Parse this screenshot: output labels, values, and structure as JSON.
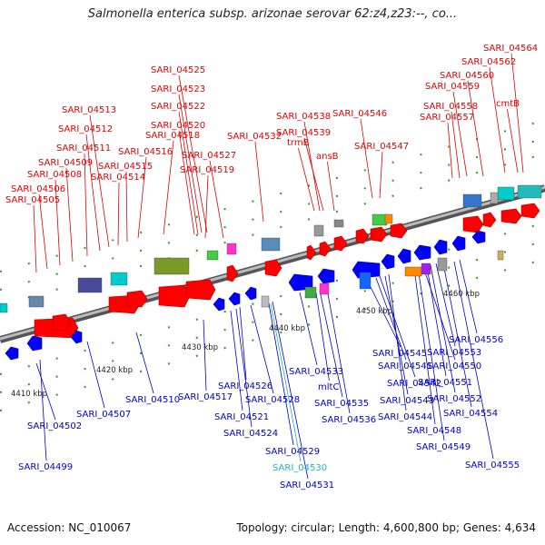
{
  "title": "Salmonella enterica subsp. arizonae serovar 62:z4,z23:--, co...",
  "footer": {
    "accession": "Accession: NC_010067",
    "summary": "Topology: circular; Length: 4,600,800 bp; Genes: 4,634"
  },
  "colors": {
    "forward_label": "#e00000",
    "reverse_label": "#0000c8",
    "highlight_label": "#20b0d0",
    "backbone": "#888888"
  },
  "ticks": [
    "4410 kbp",
    "4420 kbp",
    "4430 kbp",
    "4440 kbp",
    "4450 kbp",
    "4460 kbp"
  ],
  "forward_labels": [
    "SARI_04505",
    "SARI_04506",
    "SARI_04508",
    "SARI_04509",
    "SARI_04511",
    "SARI_04512",
    "SARI_04513",
    "SARI_04514",
    "SARI_04515",
    "SARI_04516",
    "SARI_04518",
    "SARI_04519",
    "SARI_04520",
    "SARI_04522",
    "SARI_04523",
    "SARI_04525",
    "SARI_04527",
    "SARI_04532",
    "SARI_04538",
    "trmB",
    "SARI_04539",
    "ansB",
    "SARI_04546",
    "SARI_04547",
    "SARI_04557",
    "SARI_04558",
    "SARI_04559",
    "SARI_04560",
    "SARI_04562",
    "SARI_04564",
    "cmtB"
  ],
  "reverse_labels": [
    "SARI_04499",
    "SARI_04502",
    "SARI_04507",
    "SARI_04510",
    "SARI_04517",
    "SARI_04521",
    "SARI_04524",
    "SARI_04526",
    "SARI_04528",
    "SARI_04529",
    "SARI_04530",
    "SARI_04531",
    "SARI_04533",
    "mltC",
    "SARI_04535",
    "SARI_04536",
    "SARI_04541",
    "SARI_04542",
    "SARI_04543",
    "SARI_04544",
    "SARI_04545",
    "SARI_04548",
    "SARI_04549",
    "SARI_04550",
    "SARI_04551",
    "SARI_04552",
    "SARI_04553",
    "SARI_04554",
    "SARI_04555",
    "SARI_04556"
  ]
}
